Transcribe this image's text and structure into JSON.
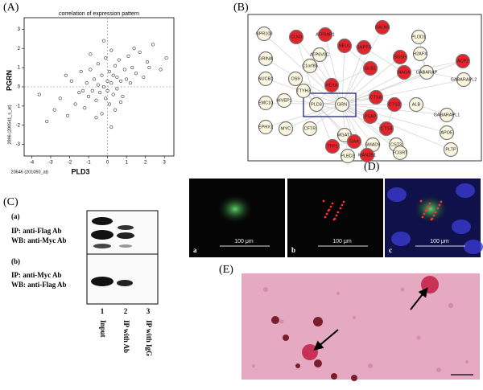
{
  "chart_data": {
    "type": "scatter",
    "title": "correlation of expression pattern",
    "x_label": "PLD3",
    "y_label": "PGRN",
    "x_sublabel": "20646 (201050_at)",
    "y_sublabel": "2896 (200541_s_at)",
    "x": [
      -3.2,
      -2.8,
      -2.5,
      -2.1,
      -1.9,
      -1.7,
      -1.5,
      -1.4,
      -1.2,
      -1.1,
      -1.0,
      -0.9,
      -0.8,
      -0.7,
      -0.6,
      -0.5,
      -0.5,
      -0.4,
      -0.3,
      -0.3,
      -0.2,
      -0.1,
      -0.1,
      0.0,
      0.0,
      0.1,
      0.1,
      0.2,
      0.2,
      0.3,
      0.3,
      0.4,
      0.5,
      0.5,
      0.6,
      0.7,
      0.8,
      0.9,
      1.0,
      1.1,
      1.2,
      1.3,
      1.5,
      1.7,
      1.9,
      2.1,
      2.4,
      2.8,
      3.1,
      -0.6,
      0.4,
      -0.9,
      0.7,
      -0.2,
      0.2,
      -1.3,
      1.4,
      -2.2,
      2.2,
      -3.6
    ],
    "y": [
      -1.8,
      -1.2,
      -0.6,
      -1.5,
      0.3,
      -0.9,
      -0.3,
      0.8,
      -1.1,
      0.2,
      -0.5,
      0.9,
      -0.2,
      0.4,
      -0.7,
      0.1,
      1.2,
      -0.3,
      0.6,
      -1.4,
      0.0,
      1.5,
      -0.6,
      0.3,
      -0.2,
      0.8,
      -0.9,
      0.2,
      1.9,
      -0.4,
      0.6,
      1.1,
      -0.1,
      0.5,
      1.4,
      0.3,
      -0.5,
      0.9,
      0.4,
      1.6,
      0.2,
      1.0,
      0.7,
      1.8,
      0.5,
      1.3,
      2.2,
      0.9,
      1.5,
      -1.6,
      -1.2,
      1.7,
      -0.8,
      2.4,
      -2.1,
      -0.2,
      2.0,
      0.6,
      1.0,
      -0.4
    ],
    "xlim": [
      -4.4,
      3.5
    ],
    "ylim": [
      -3.6,
      3.6
    ],
    "xticks": [
      -4,
      -3,
      -2,
      -1,
      0,
      1,
      2,
      3
    ],
    "yticks": [
      -3,
      -2,
      -1,
      0,
      1,
      2,
      3
    ],
    "color": "#000000",
    "zero_lines": true
  },
  "panels": {
    "labels": [
      "(A)",
      "(B)",
      "(C)",
      "(D)",
      "(E)"
    ],
    "network": {
      "nodes": [
        {
          "label": "GPR108",
          "color": "#fbf6df"
        },
        {
          "label": "CLN3",
          "color": "#e5232a"
        },
        {
          "label": "ATP6AP1",
          "color": "#e5232a"
        },
        {
          "label": "NEU1",
          "color": "#e5232a"
        },
        {
          "label": "GALNS",
          "color": "#e5232a"
        },
        {
          "label": "PLOD1",
          "color": "#fbf6df"
        },
        {
          "label": "ATP6V0C",
          "color": "#fbf6df"
        },
        {
          "label": "GNPTG",
          "color": "#e5232a"
        },
        {
          "label": "H2AFX",
          "color": "#fbf6df"
        },
        {
          "label": "GRINA",
          "color": "#fbf6df"
        },
        {
          "label": "C1orf85",
          "color": "#fbf6df"
        },
        {
          "label": "GLB1",
          "color": "#e5232a"
        },
        {
          "label": "NAGA",
          "color": "#e5232a"
        },
        {
          "label": "NUCB1",
          "color": "#fbf6df"
        },
        {
          "label": "OS9",
          "color": "#fbf6df"
        },
        {
          "label": "SGSH",
          "color": "#e5232a"
        },
        {
          "label": "GABARAP",
          "color": "#fbf6df"
        },
        {
          "label": "ACP2",
          "color": "#e5232a"
        },
        {
          "label": "TTYH3",
          "color": "#fbf6df"
        },
        {
          "label": "HEXA",
          "color": "#e5232a"
        },
        {
          "label": "HIVEP1",
          "color": "#fbf6df"
        },
        {
          "label": "PLD3",
          "color": "#fbf6df"
        },
        {
          "label": "GRN",
          "color": "#fbf6df"
        },
        {
          "label": "CTSA",
          "color": "#e5232a"
        },
        {
          "label": "GABARAPL2",
          "color": "#fbf6df"
        },
        {
          "label": "EMC10",
          "color": "#fbf6df"
        },
        {
          "label": "CTSD",
          "color": "#e5232a"
        },
        {
          "label": "ALB",
          "color": "#fbf6df"
        },
        {
          "label": "PSAP",
          "color": "#e5232a"
        },
        {
          "label": "EPHX1",
          "color": "#fbf6df"
        },
        {
          "label": "CTSB",
          "color": "#e5232a"
        },
        {
          "label": "GABARAPL1",
          "color": "#fbf6df"
        },
        {
          "label": "MYC",
          "color": "#fbf6df"
        },
        {
          "label": "CFTR",
          "color": "#fbf6df"
        },
        {
          "label": "MGAT1",
          "color": "#fbf6df"
        },
        {
          "label": "APOE",
          "color": "#fbf6df"
        },
        {
          "label": "TPP1",
          "color": "#e5232a"
        },
        {
          "label": "GAA",
          "color": "#e5232a"
        },
        {
          "label": "SMAD9",
          "color": "#fbf6df"
        },
        {
          "label": "CST3",
          "color": "#fbf6df"
        },
        {
          "label": "PLBD2",
          "color": "#fbf6df"
        },
        {
          "label": "MAN2B1",
          "color": "#e5232a"
        },
        {
          "label": "FCGRT",
          "color": "#fbf6df"
        },
        {
          "label": "PLTP",
          "color": "#fbf6df"
        }
      ]
    },
    "blot": {
      "a": {
        "tag": "(a)",
        "ip": "IP: anti-Flag Ab",
        "wb": "WB: anti-Myc Ab"
      },
      "b": {
        "tag": "(b)",
        "ip": "IP: anti-Myc Ab",
        "wb": "WB: anti-Flag Ab"
      },
      "lanes": [
        {
          "number": "1",
          "label": "Input"
        },
        {
          "number": "2",
          "label": "IP with Ab"
        },
        {
          "number": "3",
          "label": "IP with IgG"
        }
      ]
    },
    "microscopy": {
      "images": [
        {
          "tag": "a",
          "scale": "100 μm"
        },
        {
          "tag": "b",
          "scale": "100 μm"
        },
        {
          "tag": "c",
          "scale": "100 μm"
        }
      ]
    }
  }
}
